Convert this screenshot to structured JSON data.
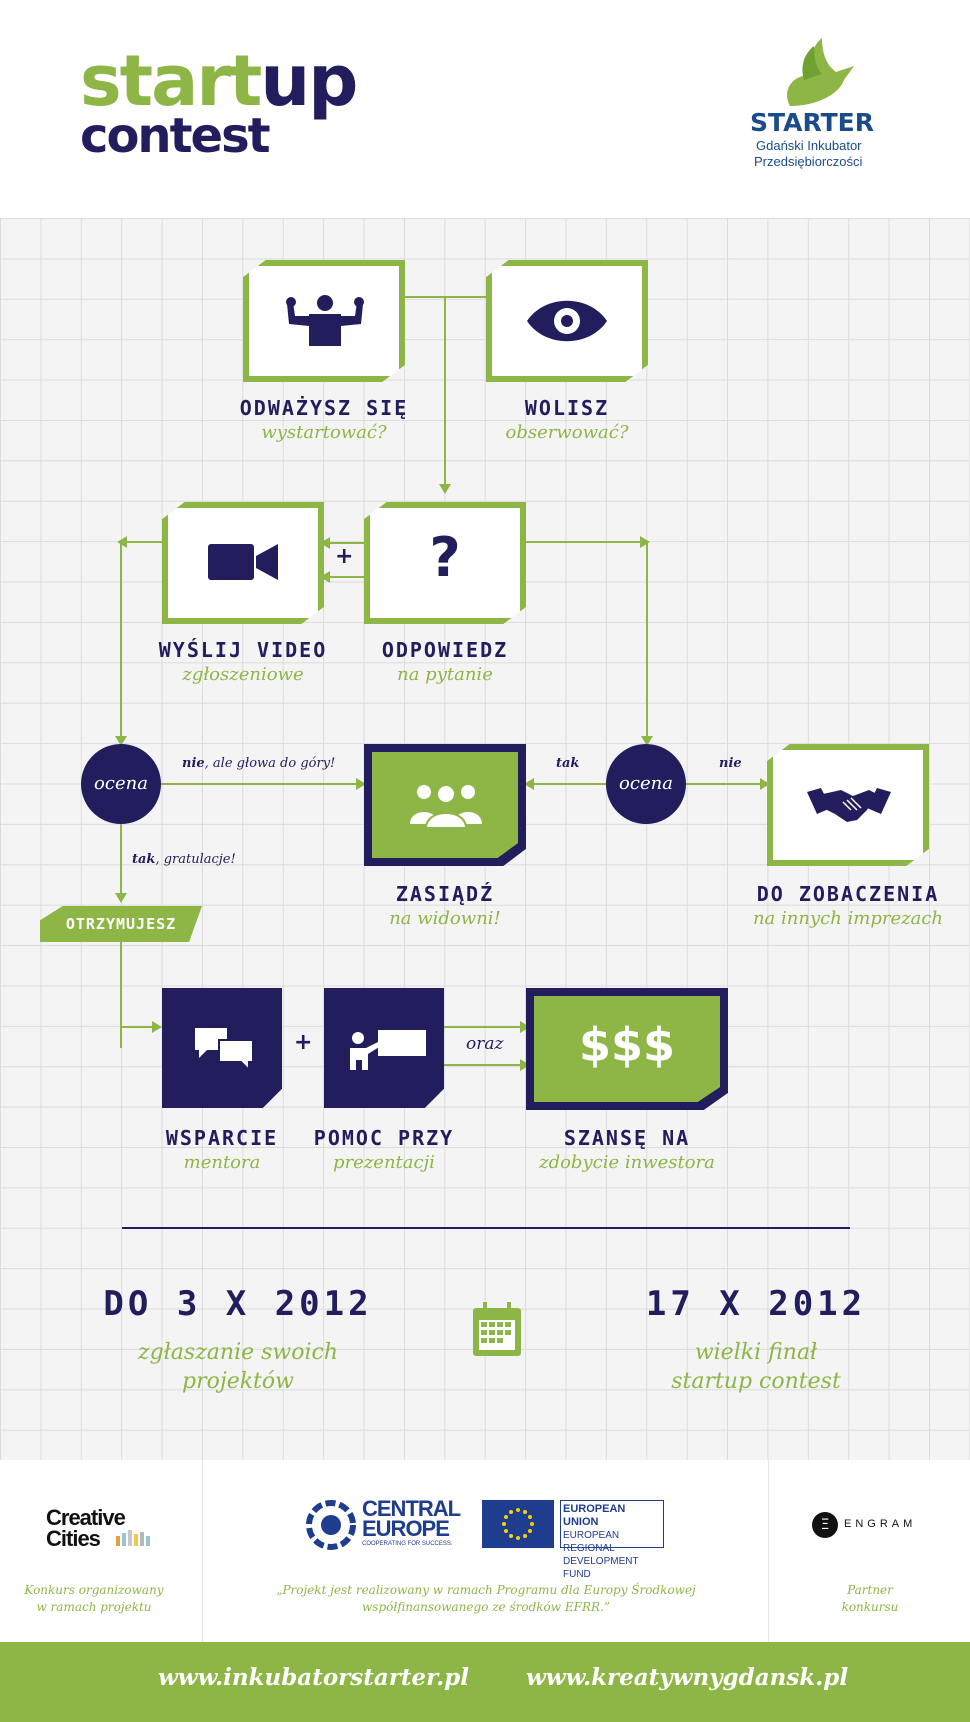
{
  "header": {
    "logo_word1": "start",
    "logo_word2": "up",
    "logo_word3": "contest",
    "starter_name": "STARTER",
    "starter_sub1": "Gdański Inkubator",
    "starter_sub2": "Przedsiębiorczości"
  },
  "flow": {
    "dare": {
      "title": "ODWAŻYSZ SIĘ",
      "sub": "wystartować?",
      "icon": "strongman-icon"
    },
    "watch": {
      "title": "WOLISZ",
      "sub": "obserwować?",
      "icon": "eye-icon"
    },
    "video": {
      "title": "WYŚLIJ VIDEO",
      "sub": "zgłoszeniowe",
      "icon": "video-camera-icon"
    },
    "answer": {
      "title": "ODPOWIEDZ",
      "sub": "na pytanie",
      "icon": "question-mark-icon",
      "glyph": "?"
    },
    "join": {
      "title": "ZASIĄDŹ",
      "sub": "na widowni!",
      "icon": "audience-icon"
    },
    "bye": {
      "title": "DO ZOBACZENIA",
      "sub": "na innych imprezach",
      "icon": "handshake-icon"
    },
    "eval_left": "ocena",
    "eval_right": "ocena",
    "no_but": "nie",
    "no_but_rest": ", ale głowa do góry!",
    "yes_word": "tak",
    "yes_rest": ", gratulacje!",
    "tak": "tak",
    "nie": "nie",
    "plus1": "+",
    "plus2": "+",
    "receive": "OTRZYMUJESZ",
    "mentor": {
      "title": "WSPARCIE",
      "sub": "mentora",
      "icon": "chat-bubbles-icon"
    },
    "pitch": {
      "title": "POMOC PRZY",
      "sub": "prezentacji",
      "icon": "presenter-icon"
    },
    "oraz": "oraz",
    "money": {
      "title": "SZANSĘ NA",
      "sub": "zdobycie inwestora",
      "glyph": "$$$"
    }
  },
  "dates": {
    "left_date": "DO 3 X 2012",
    "left_sub1": "zgłaszanie swoich",
    "left_sub2": "projektów",
    "right_date": "17 X 2012",
    "right_sub1": "wielki finał",
    "right_sub2": "startup contest",
    "icon": "calendar-icon"
  },
  "partners": {
    "cc_line1": "Creative",
    "cc_line2": "Cities",
    "cc_caption1": "Konkurs organizowany",
    "cc_caption2": "w ramach projektu",
    "ce_line1": "CENTRAL",
    "ce_line2": "EUROPE",
    "ce_line3": "COOPERATING FOR SUCCESS.",
    "eu_line1": "EUROPEAN UNION",
    "eu_line2": "EUROPEAN REGIONAL",
    "eu_line3": "DEVELOPMENT FUND",
    "center_caption1": "„Projekt jest realizowany w ramach Programu dla Europy Środkowej",
    "center_caption2": "współfinansowanego ze środków EFRR.”",
    "engram_mark": "Ξ",
    "engram": "ENGRAM",
    "engram_caption1": "Partner",
    "engram_caption2": "konkursu"
  },
  "footer": {
    "url1": "www.inkubatorstarter.pl",
    "url2": "www.kreatywnygdansk.pl"
  },
  "colors": {
    "green": "#8db646",
    "navy": "#221d5c"
  }
}
